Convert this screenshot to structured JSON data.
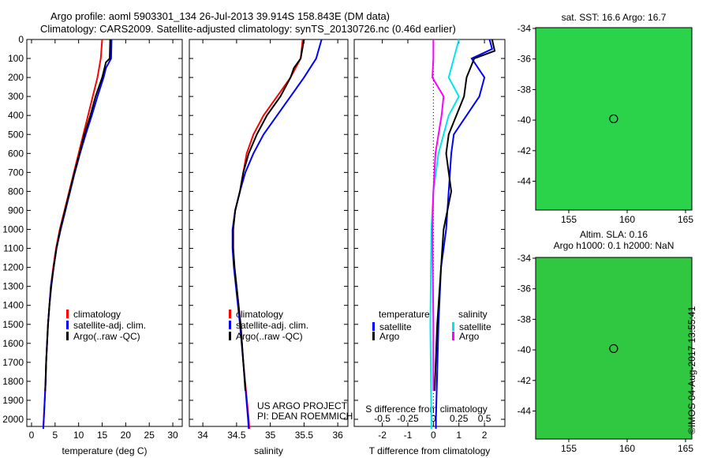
{
  "title_line1": "Argo profile: aoml 5903301_134 26-Jul-2013 39.914S 158.843E (DM data)",
  "title_line2": "Climatology: CARS2009. Satellite-adjusted climatology: synTS_20130726.nc (0.46d earlier)",
  "colors": {
    "climatology": "#ff0000",
    "satellite": "#0000ff",
    "argo": "#000000",
    "s_satellite": "#00e5ee",
    "s_argo": "#ff00ff"
  },
  "chart_data": [
    {
      "type": "line",
      "xlabel": "temperature (deg C)",
      "ylabel": "",
      "xlim": [
        -1,
        32
      ],
      "ylim": [
        2050,
        0
      ],
      "xticks": [
        0,
        5,
        10,
        15,
        20,
        25,
        30
      ],
      "yticks": [
        0,
        100,
        200,
        300,
        400,
        500,
        600,
        700,
        800,
        900,
        1000,
        1100,
        1200,
        1300,
        1400,
        1500,
        1600,
        1700,
        1800,
        1900,
        2000
      ],
      "legend": [
        "climatology",
        "satellite-adj. clim.",
        "Argo(..raw -QC)"
      ],
      "series": [
        {
          "name": "climatology",
          "color": "#ff0000",
          "depth": [
            0,
            100,
            200,
            300,
            400,
            500,
            600,
            700,
            800,
            900,
            1000,
            1100,
            1200,
            1300,
            1400,
            1500,
            1600,
            1700,
            1800,
            1900,
            2000,
            2050
          ],
          "values": [
            15,
            14.7,
            14,
            13,
            12,
            11,
            10,
            9,
            8,
            7,
            6,
            5.2,
            4.6,
            4.1,
            3.8,
            3.5,
            3.3,
            3.1,
            3,
            2.8,
            2.6,
            2.5
          ]
        },
        {
          "name": "satellite-adj. clim.",
          "color": "#0000ff",
          "depth": [
            0,
            100,
            150,
            200,
            300,
            400,
            500,
            600,
            700,
            800,
            900,
            1000,
            1100,
            1200,
            1300,
            1400,
            1500,
            1600,
            1700,
            1800,
            1900,
            2000,
            2050
          ],
          "values": [
            17,
            16.9,
            15.8,
            15.3,
            14,
            12.8,
            11.5,
            10.3,
            9.2,
            8.2,
            7.2,
            6.2,
            5.3,
            4.7,
            4.1,
            3.8,
            3.5,
            3.3,
            3.1,
            3,
            2.8,
            2.6,
            2.5
          ]
        },
        {
          "name": "Argo(..raw -QC)",
          "color": "#000000",
          "depth": [
            0,
            100,
            120,
            200,
            300,
            400,
            500,
            600,
            700,
            800,
            900,
            1000,
            1100,
            1200,
            1300,
            1400,
            1500,
            1600,
            1700,
            1850
          ],
          "values": [
            16.7,
            16.6,
            15.8,
            15,
            13.6,
            12.5,
            11.2,
            10.2,
            9.1,
            8.1,
            7.1,
            6.1,
            5.3,
            4.7,
            4.2,
            3.8,
            3.5,
            3.3,
            3.1,
            2.9
          ]
        }
      ]
    },
    {
      "type": "line",
      "xlabel": "salinity",
      "xlim": [
        33.8,
        36.15
      ],
      "ylim": [
        2050,
        0
      ],
      "xticks": [
        34,
        34.5,
        35,
        35.5,
        36
      ],
      "legend": [
        "climatology",
        "satellite-adj. clim.",
        "Argo(..raw -QC)"
      ],
      "annotation": [
        "US ARGO PROJECT",
        "PI: DEAN ROEMMICH"
      ],
      "series": [
        {
          "name": "climatology",
          "color": "#ff0000",
          "depth": [
            0,
            100,
            200,
            300,
            400,
            500,
            600,
            700,
            800,
            900,
            1000,
            1100,
            1200,
            1300,
            1400,
            1500,
            1700,
            2000,
            2050
          ],
          "values": [
            35.48,
            35.45,
            35.3,
            35.1,
            34.9,
            34.75,
            34.65,
            34.6,
            34.55,
            34.48,
            34.45,
            34.45,
            34.47,
            34.5,
            34.53,
            34.56,
            34.6,
            34.68,
            34.69
          ]
        },
        {
          "name": "satellite-adj. clim.",
          "color": "#0000ff",
          "depth": [
            0,
            50,
            100,
            200,
            300,
            400,
            500,
            600,
            700,
            800,
            900,
            1000,
            1100,
            1200,
            1300,
            1400,
            1500,
            1700,
            2000,
            2050
          ],
          "values": [
            35.76,
            35.72,
            35.68,
            35.5,
            35.3,
            35.1,
            34.9,
            34.75,
            34.63,
            34.55,
            34.48,
            34.44,
            34.44,
            34.46,
            34.49,
            34.52,
            34.55,
            34.6,
            34.67,
            34.68
          ]
        },
        {
          "name": "Argo(..raw -QC)",
          "color": "#000000",
          "depth": [
            0,
            100,
            150,
            200,
            300,
            400,
            500,
            600,
            700,
            800,
            900,
            1000,
            1100,
            1200,
            1300,
            1400,
            1500,
            1700,
            1850
          ],
          "values": [
            35.5,
            35.45,
            35.35,
            35.3,
            35.15,
            34.95,
            34.8,
            34.68,
            34.6,
            34.55,
            34.48,
            34.45,
            34.45,
            34.47,
            34.5,
            34.53,
            34.56,
            34.6,
            34.63
          ]
        }
      ]
    },
    {
      "type": "line",
      "xlabel": "T difference from climatology",
      "x2label": "S difference from climatology",
      "xlim": [
        -3.1,
        2.8
      ],
      "x2lim": [
        -0.775,
        0.7
      ],
      "ylim": [
        2050,
        0
      ],
      "xticks": [
        -2,
        -1,
        0,
        1,
        2
      ],
      "x2ticks": [
        -0.5,
        -0.25,
        0,
        0.25,
        0.5
      ],
      "x2ticklabels": [
        "-0.5",
        "-0.25",
        "0",
        "0.25",
        "0.5"
      ],
      "legend_titles": [
        "temperature",
        "salinity"
      ],
      "legend": [
        "satellite",
        "Argo",
        "satellite",
        "Argo"
      ],
      "series": [
        {
          "name": "T satellite",
          "axis": "T",
          "color": "#0000ff",
          "depth": [
            0,
            50,
            100,
            200,
            300,
            400,
            500,
            600,
            800,
            1000,
            1200,
            1500,
            2000,
            2050
          ],
          "values": [
            2.2,
            2.3,
            1.5,
            2.0,
            1.8,
            1.3,
            0.8,
            0.7,
            0.6,
            0.5,
            0.3,
            0.2,
            0.1,
            0.1
          ]
        },
        {
          "name": "T Argo",
          "axis": "T",
          "color": "#000000",
          "depth": [
            0,
            60,
            100,
            200,
            300,
            400,
            500,
            600,
            800,
            1000,
            1200,
            1500,
            1850
          ],
          "values": [
            2.3,
            2.4,
            1.6,
            1.3,
            1.2,
            0.9,
            0.6,
            0.5,
            0.7,
            0.4,
            0.3,
            0.15,
            0.05
          ]
        },
        {
          "name": "S satellite",
          "axis": "S",
          "color": "#00e5ee",
          "depth": [
            0,
            100,
            200,
            300,
            400,
            500,
            600,
            800,
            1000,
            1500,
            2000,
            2050
          ],
          "values": [
            0.25,
            0.2,
            0.15,
            0.25,
            0.15,
            0.1,
            0.05,
            0,
            -0.02,
            -0.03,
            -0.02,
            -0.02
          ]
        },
        {
          "name": "S Argo",
          "axis": "S",
          "color": "#ff00ff",
          "depth": [
            0,
            100,
            200,
            300,
            400,
            500,
            600,
            800,
            1000,
            1500,
            1850
          ],
          "values": [
            0,
            0,
            -0.01,
            0.1,
            0.08,
            0.05,
            0.02,
            0,
            -0.01,
            0,
            0
          ]
        }
      ]
    },
    {
      "type": "heatmap",
      "title": "sat. SST: 16.6 Argo: 16.7",
      "xticks": [
        155,
        160,
        165
      ],
      "yticks": [
        -34,
        -36,
        -38,
        -40,
        -42,
        -44
      ],
      "marker": [
        158.843,
        -39.914
      ]
    },
    {
      "type": "heatmap",
      "title": [
        "Altim. SLA: 0.16",
        "Argo h1000: 0.1 h2000: NaN"
      ],
      "xticks": [
        155,
        160,
        165
      ],
      "yticks": [
        -34,
        -36,
        -38,
        -40,
        -42,
        -44
      ],
      "marker": [
        158.843,
        -39.914
      ]
    }
  ],
  "watermark": "©IMOS 04-Aug-2017 13:55:41"
}
